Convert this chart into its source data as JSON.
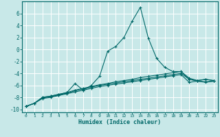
{
  "xlabel": "Humidex (Indice chaleur)",
  "bg_color": "#c8e8e8",
  "grid_color": "#ffffff",
  "line_color": "#006868",
  "xlim": [
    -0.5,
    23.5
  ],
  "ylim": [
    -10.5,
    8.0
  ],
  "xticks": [
    0,
    1,
    2,
    3,
    4,
    5,
    6,
    7,
    8,
    9,
    10,
    11,
    12,
    13,
    14,
    15,
    16,
    17,
    18,
    19,
    20,
    21,
    22,
    23
  ],
  "yticks": [
    -10,
    -8,
    -6,
    -4,
    -2,
    0,
    2,
    4,
    6
  ],
  "series": [
    {
      "x": [
        0,
        1,
        2,
        3,
        4,
        5,
        6,
        7,
        8,
        9,
        10,
        11,
        12,
        13,
        14,
        15,
        16,
        17,
        18,
        19,
        20,
        21,
        22,
        23
      ],
      "y": [
        -9.5,
        -9.0,
        -8.0,
        -7.8,
        -7.5,
        -7.2,
        -5.7,
        -6.8,
        -6.0,
        -4.5,
        -0.3,
        0.5,
        2.0,
        4.7,
        7.0,
        1.8,
        -1.5,
        -3.0,
        -3.7,
        -3.7,
        -5.0,
        -5.2,
        -5.0,
        -5.2
      ]
    },
    {
      "x": [
        0,
        1,
        2,
        3,
        4,
        5,
        6,
        7,
        8,
        9,
        10,
        11,
        12,
        13,
        14,
        15,
        16,
        17,
        18,
        19,
        20,
        21,
        22,
        23
      ],
      "y": [
        -9.5,
        -9.0,
        -8.0,
        -7.8,
        -7.5,
        -7.2,
        -6.8,
        -6.5,
        -6.2,
        -5.9,
        -5.7,
        -5.4,
        -5.2,
        -5.0,
        -4.7,
        -4.5,
        -4.3,
        -4.1,
        -3.9,
        -3.7,
        -4.8,
        -5.2,
        -5.0,
        -5.2
      ]
    },
    {
      "x": [
        0,
        1,
        2,
        3,
        4,
        5,
        6,
        7,
        8,
        9,
        10,
        11,
        12,
        13,
        14,
        15,
        16,
        17,
        18,
        19,
        20,
        21,
        22,
        23
      ],
      "y": [
        -9.5,
        -9.0,
        -8.1,
        -7.9,
        -7.6,
        -7.3,
        -6.9,
        -6.6,
        -6.3,
        -6.0,
        -5.8,
        -5.6,
        -5.4,
        -5.2,
        -5.0,
        -4.8,
        -4.6,
        -4.4,
        -4.2,
        -4.0,
        -5.0,
        -5.3,
        -5.4,
        -5.3
      ]
    },
    {
      "x": [
        0,
        1,
        2,
        3,
        4,
        5,
        6,
        7,
        8,
        9,
        10,
        11,
        12,
        13,
        14,
        15,
        16,
        17,
        18,
        19,
        20,
        21,
        22,
        23
      ],
      "y": [
        -9.5,
        -9.0,
        -8.2,
        -8.0,
        -7.7,
        -7.4,
        -7.1,
        -6.8,
        -6.5,
        -6.2,
        -6.0,
        -5.8,
        -5.6,
        -5.4,
        -5.2,
        -5.0,
        -4.8,
        -4.6,
        -4.4,
        -4.2,
        -5.5,
        -5.3,
        -5.5,
        -5.3
      ]
    }
  ]
}
